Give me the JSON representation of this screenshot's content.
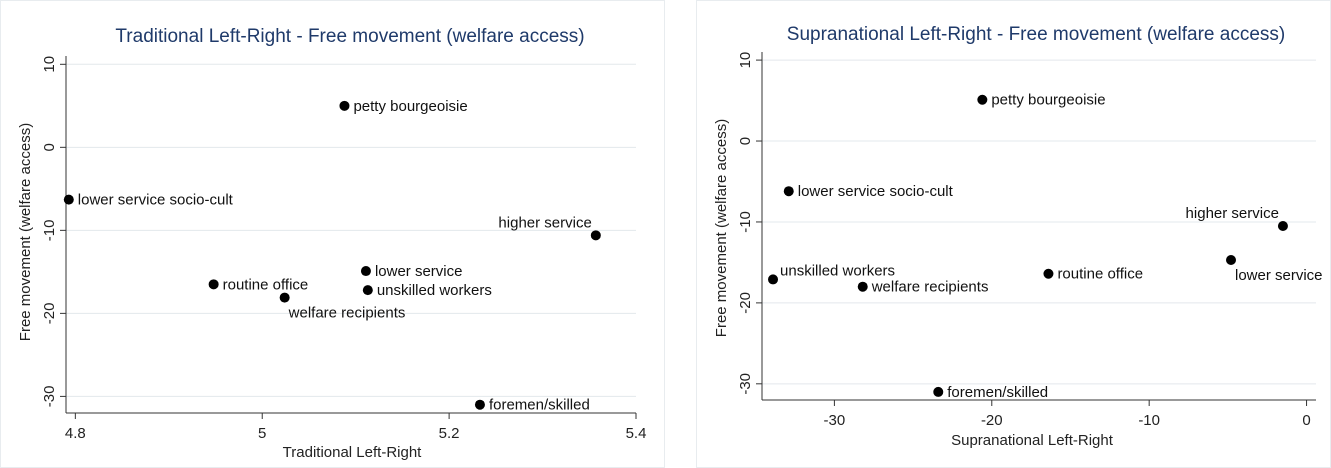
{
  "chart_data": [
    {
      "type": "scatter",
      "title": "Traditional Left-Right - Free movement (welfare access)",
      "xlabel": "Traditional Left-Right",
      "ylabel": "Free movement (welfare access)",
      "xlim": [
        4.79,
        5.4
      ],
      "ylim": [
        -32,
        11
      ],
      "xticks": [
        4.8,
        5,
        5.2,
        5.4
      ],
      "xtick_labels": [
        "4.8",
        "5",
        "5.2",
        "5.4"
      ],
      "yticks": [
        10,
        0,
        -10,
        -20,
        -30
      ],
      "ytick_labels": [
        "10",
        "0",
        "-10",
        "-20",
        "-30"
      ],
      "grid": "horizontal",
      "colors": {
        "title": "#1f3a6a",
        "points": "#000000",
        "grid": "#e3e8ec"
      },
      "points": [
        {
          "label": "petty bourgeoisie",
          "x": 5.088,
          "y": 5.0,
          "label_pos": "right"
        },
        {
          "label": "lower service socio-cult",
          "x": 4.793,
          "y": -6.3,
          "label_pos": "right"
        },
        {
          "label": "higher service",
          "x": 5.357,
          "y": -10.6,
          "label_pos": "left-above"
        },
        {
          "label": "lower service",
          "x": 5.111,
          "y": -14.9,
          "label_pos": "right"
        },
        {
          "label": "routine office",
          "x": 4.948,
          "y": -16.5,
          "label_pos": "right"
        },
        {
          "label": "welfare recipients",
          "x": 5.024,
          "y": -18.1,
          "label_pos": "right-below"
        },
        {
          "label": "unskilled workers",
          "x": 5.113,
          "y": -17.2,
          "label_pos": "right"
        },
        {
          "label": "foremen/skilled",
          "x": 5.233,
          "y": -31.0,
          "label_pos": "right"
        }
      ]
    },
    {
      "type": "scatter",
      "title": "Supranational Left-Right - Free movement (welfare access)",
      "xlabel": "Supranational Left-Right",
      "ylabel": "Free movement (welfare access)",
      "xlim": [
        -34.6,
        0.6
      ],
      "ylim": [
        -32,
        11
      ],
      "xticks": [
        -30,
        -20,
        -10,
        0
      ],
      "xtick_labels": [
        "-30",
        "-20",
        "-10",
        "0"
      ],
      "yticks": [
        10,
        0,
        -10,
        -20,
        -30
      ],
      "ytick_labels": [
        "10",
        "0",
        "-10",
        "-20",
        "-30"
      ],
      "grid": "horizontal",
      "colors": {
        "title": "#1f3a6a",
        "points": "#000000",
        "grid": "#e3e8ec"
      },
      "points": [
        {
          "label": "petty bourgeoisie",
          "x": -20.6,
          "y": 5.1,
          "label_pos": "right"
        },
        {
          "label": "lower service socio-cult",
          "x": -32.9,
          "y": -6.2,
          "label_pos": "right"
        },
        {
          "label": "higher service",
          "x": -1.5,
          "y": -10.5,
          "label_pos": "left-above"
        },
        {
          "label": "lower service",
          "x": -4.8,
          "y": -14.7,
          "label_pos": "right-below"
        },
        {
          "label": "routine office",
          "x": -16.4,
          "y": -16.4,
          "label_pos": "right"
        },
        {
          "label": "unskilled workers",
          "x": -33.9,
          "y": -17.1,
          "label_pos": "right-above"
        },
        {
          "label": "welfare recipients",
          "x": -28.2,
          "y": -18.0,
          "label_pos": "right"
        },
        {
          "label": "foremen/skilled",
          "x": -23.4,
          "y": -31.0,
          "label_pos": "right"
        }
      ]
    }
  ]
}
